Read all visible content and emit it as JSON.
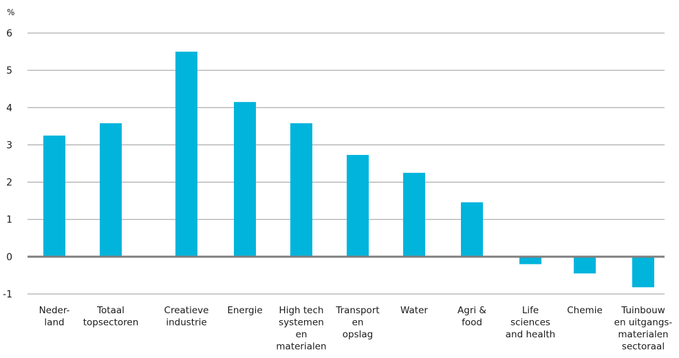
{
  "chart_data": {
    "type": "bar",
    "unit_label": "%",
    "categories": [
      [
        "Neder-",
        "land"
      ],
      [
        "Totaal",
        "topsectoren"
      ],
      [
        "Creatieve",
        "industrie"
      ],
      [
        "Energie"
      ],
      [
        "High tech",
        "systemen",
        "en",
        "materialen"
      ],
      [
        "Transport",
        "en",
        "opslag"
      ],
      [
        "Water"
      ],
      [
        "Agri &",
        "food"
      ],
      [
        "Life",
        "sciences",
        "and health"
      ],
      [
        "Chemie"
      ],
      [
        "Tuinbouw",
        "en uitgangs-",
        "materialen",
        "sectoraal"
      ]
    ],
    "values": [
      3.25,
      3.58,
      5.5,
      4.15,
      3.58,
      2.73,
      2.25,
      1.46,
      -0.2,
      -0.45,
      -0.82
    ],
    "ylim": [
      -1,
      6
    ],
    "yticks": [
      -1,
      0,
      1,
      2,
      3,
      4,
      5,
      6
    ],
    "bar_color": "#00b4dc",
    "grid": true,
    "grid_color": "#9a9a9a",
    "zero_line_color": "#7f7f7f",
    "legend": "none"
  }
}
